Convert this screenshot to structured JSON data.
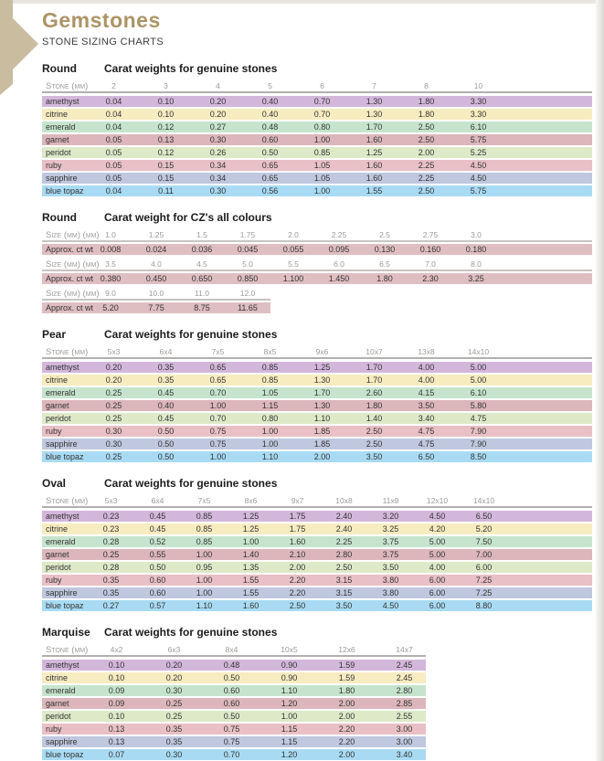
{
  "page": {
    "title": "Gemstones",
    "subtitle": "STONE SIZING CHARTS"
  },
  "colors": {
    "title_accent": "#ac9466",
    "corner_arrow": "#c9bc9f",
    "cz_band": "#dfbec1",
    "stones": {
      "amethyst": "#d3b7db",
      "citrine": "#f7ecc0",
      "emerald": "#c6e4cd",
      "garnet": "#dcb6ba",
      "peridot": "#dee9c8",
      "ruby": "#e8c0c5",
      "sapphire": "#bfc8df",
      "blue topaz": "#a8dbf3"
    }
  },
  "sections": [
    {
      "id": "round-genuine",
      "kind": "stones",
      "shape": "Round",
      "title": "Carat weights for genuine stones",
      "header_label": "Stone (mm)",
      "columns": [
        "2",
        "3",
        "4",
        "5",
        "6",
        "7",
        "8",
        "10"
      ],
      "rows": [
        {
          "stone": "amethyst",
          "values": [
            "0.04",
            "0.10",
            "0.20",
            "0.40",
            "0.70",
            "1.30",
            "1.80",
            "3.30"
          ]
        },
        {
          "stone": "citrine",
          "values": [
            "0.04",
            "0.10",
            "0.20",
            "0.40",
            "0.70",
            "1.30",
            "1.80",
            "3.30"
          ]
        },
        {
          "stone": "emerald",
          "values": [
            "0.04",
            "0.12",
            "0.27",
            "0.48",
            "0.80",
            "1.70",
            "2.50",
            "6.10"
          ]
        },
        {
          "stone": "garnet",
          "values": [
            "0.05",
            "0.13",
            "0.30",
            "0.60",
            "1.00",
            "1.60",
            "2.50",
            "5.75"
          ]
        },
        {
          "stone": "peridot",
          "values": [
            "0.05",
            "0.12",
            "0.26",
            "0.50",
            "0.85",
            "1.25",
            "2.00",
            "5.25"
          ]
        },
        {
          "stone": "ruby",
          "values": [
            "0.05",
            "0.15",
            "0.34",
            "0.65",
            "1.05",
            "1.60",
            "2.25",
            "4.50"
          ]
        },
        {
          "stone": "sapphire",
          "values": [
            "0.05",
            "0.15",
            "0.34",
            "0.65",
            "1.05",
            "1.60",
            "2.25",
            "4.50"
          ]
        },
        {
          "stone": "blue topaz",
          "values": [
            "0.04",
            "0.11",
            "0.30",
            "0.56",
            "1.00",
            "1.55",
            "2.50",
            "5.75"
          ]
        }
      ]
    },
    {
      "id": "round-cz",
      "kind": "cz",
      "shape": "Round",
      "title": "Carat weight for CZ's all colours",
      "size_label": "Size (mm) (mm)",
      "weight_label": "Approx. ct wt",
      "groups": [
        {
          "sizes": [
            "1.0",
            "1.25",
            "1.5",
            "1.75",
            "2.0",
            "2.25",
            "2.5",
            "2.75",
            "3.0"
          ],
          "weights": [
            "0.008",
            "0.024",
            "0.036",
            "0.045",
            "0.055",
            "0.095",
            "0.130",
            "0.160",
            "0.180"
          ]
        },
        {
          "sizes": [
            "3.5",
            "4.0",
            "4.5",
            "5.0",
            "5.5",
            "6.0",
            "6.5",
            "7.0",
            "8.0"
          ],
          "weights": [
            "0.380",
            "0.450",
            "0.650",
            "0.850",
            "1.100",
            "1.450",
            "1.80",
            "2.30",
            "3.25"
          ]
        },
        {
          "sizes": [
            "9.0",
            "10.0",
            "11.0",
            "12.0"
          ],
          "weights": [
            "5.20",
            "7.75",
            "8.75",
            "11.65"
          ]
        }
      ]
    },
    {
      "id": "pear-genuine",
      "kind": "stones",
      "shape": "Pear",
      "title": "Carat weights for genuine stones",
      "header_label": "Stone (mm)",
      "columns": [
        "5x3",
        "6x4",
        "7x5",
        "8x5",
        "9x6",
        "10x7",
        "13x8",
        "14x10"
      ],
      "rows": [
        {
          "stone": "amethyst",
          "values": [
            "0.20",
            "0.35",
            "0.65",
            "0.85",
            "1.25",
            "1.70",
            "4.00",
            "5.00"
          ]
        },
        {
          "stone": "citrine",
          "values": [
            "0.20",
            "0.35",
            "0.65",
            "0.85",
            "1.30",
            "1.70",
            "4.00",
            "5.00"
          ]
        },
        {
          "stone": "emerald",
          "values": [
            "0.25",
            "0.45",
            "0.70",
            "1.05",
            "1.70",
            "2.60",
            "4.15",
            "6.10"
          ]
        },
        {
          "stone": "garnet",
          "values": [
            "0.25",
            "0.40",
            "1.00",
            "1.15",
            "1.30",
            "1.80",
            "3.50",
            "5.80"
          ]
        },
        {
          "stone": "peridot",
          "values": [
            "0.25",
            "0.45",
            "0.70",
            "0.80",
            "1.10",
            "1.40",
            "3.40",
            "4.75"
          ]
        },
        {
          "stone": "ruby",
          "values": [
            "0.30",
            "0.50",
            "0.75",
            "1.00",
            "1.85",
            "2.50",
            "4.75",
            "7.90"
          ]
        },
        {
          "stone": "sapphire",
          "values": [
            "0.30",
            "0.50",
            "0.75",
            "1.00",
            "1.85",
            "2.50",
            "4.75",
            "7.90"
          ]
        },
        {
          "stone": "blue topaz",
          "values": [
            "0.25",
            "0.50",
            "1.00",
            "1.10",
            "2.00",
            "3.50",
            "6.50",
            "8.50"
          ]
        }
      ]
    },
    {
      "id": "oval-genuine",
      "kind": "stones",
      "shape": "Oval",
      "title": "Carat weights for genuine stones",
      "header_label": "Stone (mm)",
      "columns": [
        "5x3",
        "6x4",
        "7x5",
        "8x6",
        "9x7",
        "10x8",
        "11x9",
        "12x10",
        "14x10"
      ],
      "rows": [
        {
          "stone": "amethyst",
          "values": [
            "0.23",
            "0.45",
            "0.85",
            "1.25",
            "1.75",
            "2.40",
            "3.20",
            "4.50",
            "6.50"
          ]
        },
        {
          "stone": "citrine",
          "values": [
            "0.23",
            "0.45",
            "0.85",
            "1.25",
            "1.75",
            "2.40",
            "3.25",
            "4.20",
            "5.20"
          ]
        },
        {
          "stone": "emerald",
          "values": [
            "0.28",
            "0.52",
            "0.85",
            "1.00",
            "1.60",
            "2.25",
            "3.75",
            "5.00",
            "7.50"
          ]
        },
        {
          "stone": "garnet",
          "values": [
            "0.25",
            "0.55",
            "1.00",
            "1.40",
            "2.10",
            "2.80",
            "3.75",
            "5.00",
            "7.00"
          ]
        },
        {
          "stone": "peridot",
          "values": [
            "0.28",
            "0.50",
            "0.95",
            "1.35",
            "2.00",
            "2.50",
            "3.50",
            "4.00",
            "6.00"
          ]
        },
        {
          "stone": "ruby",
          "values": [
            "0.35",
            "0.60",
            "1.00",
            "1.55",
            "2.20",
            "3.15",
            "3.80",
            "6.00",
            "7.25"
          ]
        },
        {
          "stone": "sapphire",
          "values": [
            "0.35",
            "0.60",
            "1.00",
            "1.55",
            "2.20",
            "3.15",
            "3.80",
            "6.00",
            "7.25"
          ]
        },
        {
          "stone": "blue topaz",
          "values": [
            "0.27",
            "0.57",
            "1.10",
            "1.60",
            "2.50",
            "3.50",
            "4.50",
            "6.00",
            "8.80"
          ]
        }
      ]
    },
    {
      "id": "marquise-genuine",
      "kind": "stones",
      "shape": "Marquise",
      "title": "Carat weights for genuine stones",
      "header_label": "Stone (mm)",
      "columns": [
        "4x2",
        "6x3",
        "8x4",
        "10x5",
        "12x6",
        "14x7"
      ],
      "rows": [
        {
          "stone": "amethyst",
          "values": [
            "0.10",
            "0.20",
            "0.48",
            "0.90",
            "1.59",
            "2.45"
          ]
        },
        {
          "stone": "citrine",
          "values": [
            "0.10",
            "0.20",
            "0.50",
            "0.90",
            "1.59",
            "2.45"
          ]
        },
        {
          "stone": "emerald",
          "values": [
            "0.09",
            "0.30",
            "0.60",
            "1.10",
            "1.80",
            "2.80"
          ]
        },
        {
          "stone": "garnet",
          "values": [
            "0.09",
            "0.25",
            "0.60",
            "1.20",
            "2.00",
            "2.85"
          ]
        },
        {
          "stone": "peridot",
          "values": [
            "0.10",
            "0.25",
            "0.50",
            "1.00",
            "2.00",
            "2.55"
          ]
        },
        {
          "stone": "ruby",
          "values": [
            "0.13",
            "0.35",
            "0.75",
            "1.15",
            "2.20",
            "3.00"
          ]
        },
        {
          "stone": "sapphire",
          "values": [
            "0.13",
            "0.35",
            "0.75",
            "1.15",
            "2.20",
            "3.00"
          ]
        },
        {
          "stone": "blue topaz",
          "values": [
            "0.07",
            "0.30",
            "0.70",
            "1.20",
            "2.00",
            "3.40"
          ]
        }
      ]
    }
  ]
}
